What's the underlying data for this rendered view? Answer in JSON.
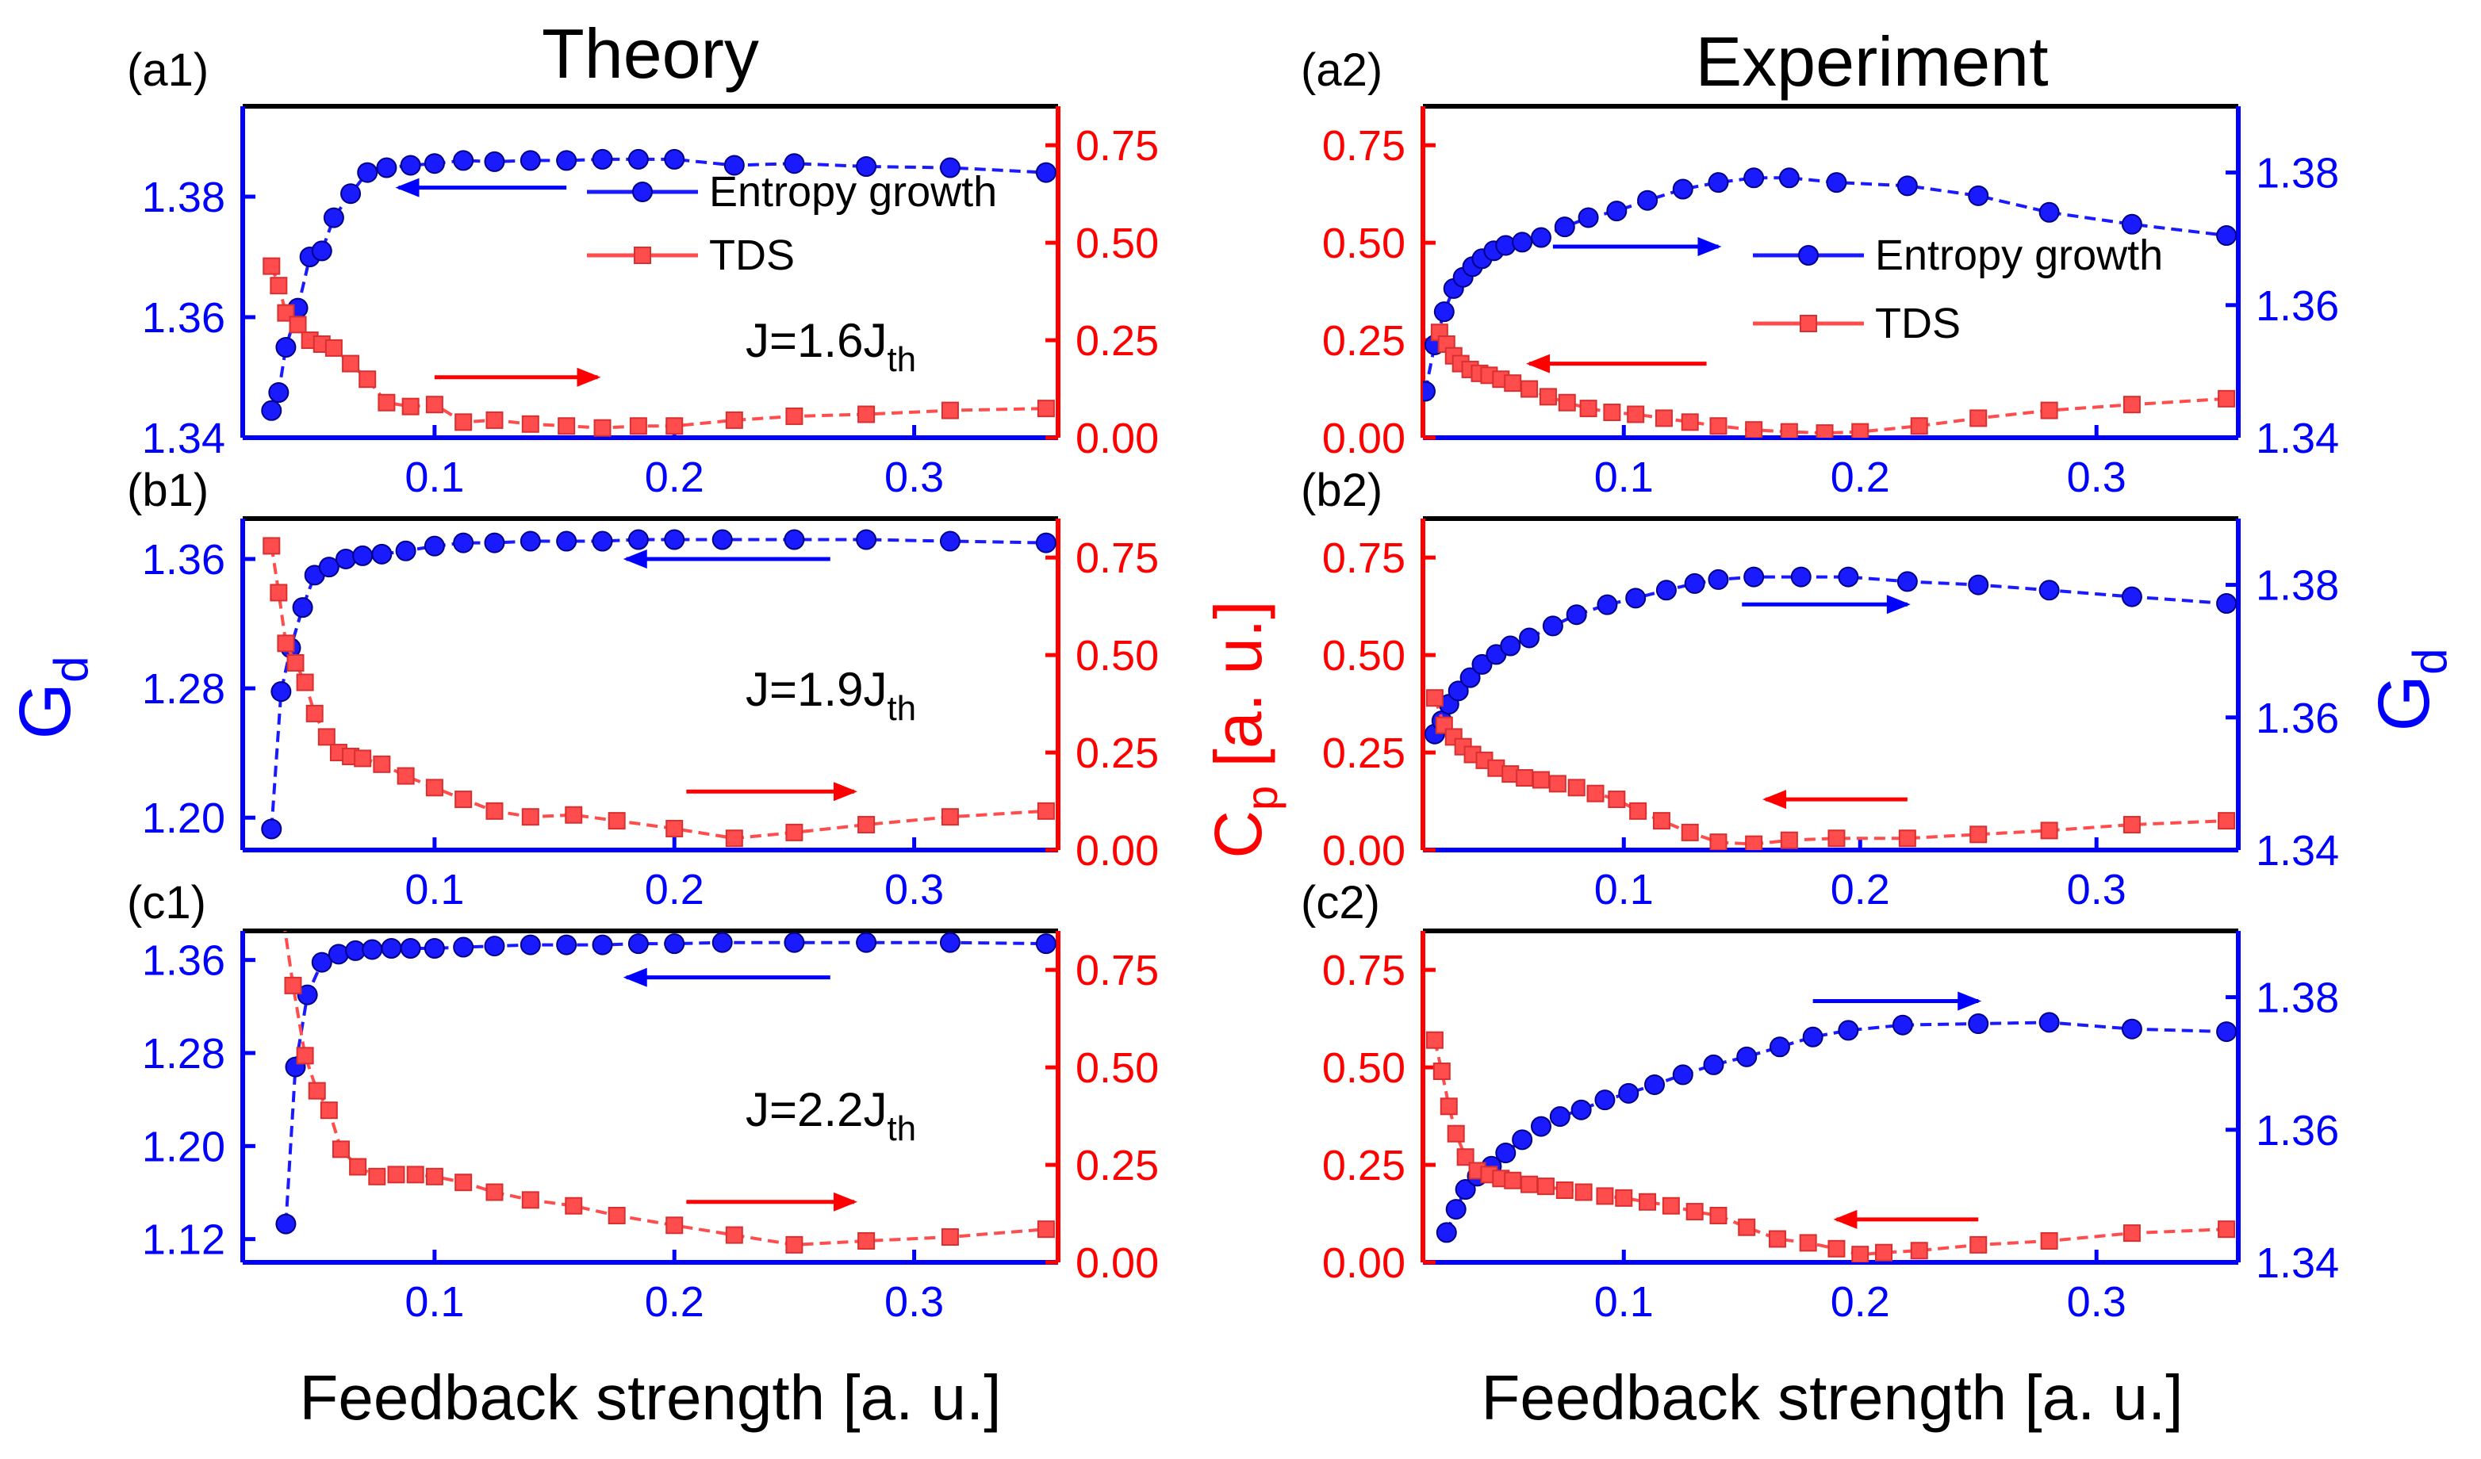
{
  "figure": {
    "column_titles": [
      "Theory",
      "Experiment"
    ],
    "left_ylabel": "G",
    "left_ylabel_sub": "d",
    "center_ylabel": "C",
    "center_ylabel_sub": "p",
    "center_ylabel_suffix": " [a. u.]",
    "right_ylabel": "G",
    "right_ylabel_sub": "d",
    "xlabel": "Feedback strength [a. u.]",
    "colors": {
      "entropy": "#1a1aff",
      "tds": "#ff4c4c",
      "blue_axis": "#0000ff",
      "red_axis": "#ff0000"
    }
  },
  "chart_data": [
    {
      "panel": "(a1)",
      "column": "Theory",
      "type": "line",
      "annotation": {
        "base": "J=1.6J",
        "sub": "th"
      },
      "legend": [
        "Entropy growth",
        "TDS"
      ],
      "xlim": [
        0.02,
        0.36
      ],
      "xticks": [
        0.1,
        0.2,
        0.3
      ],
      "gd_axis": {
        "side": "left",
        "ylim": [
          1.34,
          1.395
        ],
        "ticks": [
          1.34,
          1.36,
          1.38
        ]
      },
      "cp_axis": {
        "side": "right",
        "ylim": [
          0,
          0.85
        ],
        "ticks": [
          0.0,
          0.25,
          0.5,
          0.75
        ]
      },
      "series": [
        {
          "name": "Entropy growth",
          "axis": "gd",
          "x": [
            0.032,
            0.035,
            0.038,
            0.043,
            0.048,
            0.053,
            0.058,
            0.065,
            0.072,
            0.08,
            0.09,
            0.1,
            0.112,
            0.125,
            0.14,
            0.155,
            0.17,
            0.185,
            0.2,
            0.225,
            0.25,
            0.28,
            0.315,
            0.355
          ],
          "y": [
            1.3445,
            1.3475,
            1.355,
            1.3615,
            1.37,
            1.371,
            1.3765,
            1.3805,
            1.384,
            1.3848,
            1.3852,
            1.3855,
            1.386,
            1.3858,
            1.386,
            1.386,
            1.3862,
            1.3862,
            1.3862,
            1.3852,
            1.3855,
            1.385,
            1.3848,
            1.384
          ]
        },
        {
          "name": "TDS",
          "axis": "cp",
          "x": [
            0.032,
            0.035,
            0.038,
            0.043,
            0.048,
            0.053,
            0.058,
            0.065,
            0.072,
            0.08,
            0.09,
            0.1,
            0.112,
            0.125,
            0.14,
            0.155,
            0.17,
            0.185,
            0.2,
            0.225,
            0.25,
            0.28,
            0.315,
            0.355
          ],
          "y": [
            0.44,
            0.39,
            0.32,
            0.29,
            0.25,
            0.24,
            0.23,
            0.19,
            0.15,
            0.09,
            0.08,
            0.085,
            0.04,
            0.045,
            0.035,
            0.03,
            0.025,
            0.03,
            0.03,
            0.045,
            0.055,
            0.06,
            0.07,
            0.075
          ]
        }
      ],
      "arrows": [
        {
          "target": "Entropy growth",
          "direction": "left",
          "y_axis": "gd",
          "y": 1.3815,
          "x_from": 0.155,
          "x_to": 0.085
        },
        {
          "target": "TDS",
          "direction": "right",
          "y_axis": "cp",
          "y": 0.155,
          "x_from": 0.1,
          "x_to": 0.168
        }
      ]
    },
    {
      "panel": "(a2)",
      "column": "Experiment",
      "type": "line",
      "legend": [
        "Entropy growth",
        "TDS"
      ],
      "xlim": [
        0.015,
        0.36
      ],
      "xticks": [
        0.1,
        0.2,
        0.3
      ],
      "cp_axis": {
        "side": "left",
        "ylim": [
          0,
          0.85
        ],
        "ticks": [
          0.0,
          0.25,
          0.5,
          0.75
        ]
      },
      "gd_axis": {
        "side": "right",
        "ylim": [
          1.34,
          1.39
        ],
        "ticks": [
          1.34,
          1.36,
          1.38
        ]
      },
      "series": [
        {
          "name": "Entropy growth",
          "axis": "gd",
          "x": [
            0.016,
            0.02,
            0.024,
            0.028,
            0.032,
            0.036,
            0.04,
            0.045,
            0.05,
            0.057,
            0.065,
            0.075,
            0.085,
            0.097,
            0.11,
            0.125,
            0.14,
            0.155,
            0.17,
            0.19,
            0.22,
            0.25,
            0.28,
            0.315,
            0.355
          ],
          "y": [
            1.347,
            1.354,
            1.359,
            1.3625,
            1.3642,
            1.3658,
            1.367,
            1.3682,
            1.369,
            1.3695,
            1.3702,
            1.3718,
            1.3732,
            1.3742,
            1.3758,
            1.3775,
            1.3785,
            1.3792,
            1.3792,
            1.3785,
            1.378,
            1.3765,
            1.374,
            1.3722,
            1.3705
          ]
        },
        {
          "name": "TDS",
          "axis": "cp",
          "x": [
            0.022,
            0.025,
            0.028,
            0.031,
            0.035,
            0.039,
            0.043,
            0.048,
            0.053,
            0.06,
            0.068,
            0.076,
            0.085,
            0.095,
            0.105,
            0.117,
            0.128,
            0.14,
            0.155,
            0.17,
            0.185,
            0.2,
            0.225,
            0.25,
            0.28,
            0.315,
            0.355
          ],
          "y": [
            0.27,
            0.24,
            0.21,
            0.19,
            0.175,
            0.165,
            0.16,
            0.15,
            0.14,
            0.125,
            0.105,
            0.09,
            0.075,
            0.065,
            0.06,
            0.05,
            0.04,
            0.03,
            0.02,
            0.015,
            0.012,
            0.015,
            0.03,
            0.05,
            0.07,
            0.085,
            0.1
          ]
        }
      ],
      "arrows": [
        {
          "target": "Entropy growth",
          "direction": "right",
          "y_axis": "cp",
          "y": 0.49,
          "x_from": 0.07,
          "x_to": 0.14
        },
        {
          "target": "TDS",
          "direction": "left",
          "y_axis": "cp",
          "y": 0.19,
          "x_from": 0.135,
          "x_to": 0.06
        }
      ]
    },
    {
      "panel": "(b1)",
      "column": "Theory",
      "type": "line",
      "annotation": {
        "base": "J=1.9J",
        "sub": "th"
      },
      "xlim": [
        0.02,
        0.36
      ],
      "xticks": [
        0.1,
        0.2,
        0.3
      ],
      "gd_axis": {
        "side": "left",
        "ylim": [
          1.18,
          1.385
        ],
        "ticks": [
          1.2,
          1.28,
          1.36
        ]
      },
      "cp_axis": {
        "side": "right",
        "ylim": [
          0,
          0.85
        ],
        "ticks": [
          0.0,
          0.25,
          0.5,
          0.75
        ]
      },
      "series": [
        {
          "name": "Entropy growth",
          "axis": "gd",
          "x": [
            0.032,
            0.036,
            0.04,
            0.045,
            0.05,
            0.056,
            0.063,
            0.07,
            0.078,
            0.088,
            0.1,
            0.112,
            0.125,
            0.14,
            0.155,
            0.17,
            0.185,
            0.2,
            0.22,
            0.25,
            0.28,
            0.315,
            0.355
          ],
          "y": [
            1.193,
            1.278,
            1.305,
            1.33,
            1.35,
            1.355,
            1.36,
            1.362,
            1.363,
            1.365,
            1.368,
            1.37,
            1.37,
            1.371,
            1.371,
            1.371,
            1.372,
            1.372,
            1.372,
            1.372,
            1.372,
            1.371,
            1.37
          ]
        },
        {
          "name": "TDS",
          "axis": "cp",
          "x": [
            0.032,
            0.035,
            0.038,
            0.042,
            0.046,
            0.05,
            0.055,
            0.06,
            0.065,
            0.07,
            0.078,
            0.088,
            0.1,
            0.112,
            0.125,
            0.14,
            0.158,
            0.176,
            0.2,
            0.225,
            0.25,
            0.28,
            0.315,
            0.355
          ],
          "y": [
            0.78,
            0.66,
            0.53,
            0.48,
            0.43,
            0.35,
            0.29,
            0.25,
            0.24,
            0.235,
            0.22,
            0.19,
            0.16,
            0.13,
            0.1,
            0.085,
            0.09,
            0.075,
            0.055,
            0.03,
            0.045,
            0.065,
            0.085,
            0.1
          ]
        }
      ],
      "arrows": [
        {
          "target": "Entropy growth",
          "direction": "left",
          "y_axis": "gd",
          "y": 1.36,
          "x_from": 0.265,
          "x_to": 0.18
        },
        {
          "target": "TDS",
          "direction": "right",
          "y_axis": "cp",
          "y": 0.15,
          "x_from": 0.205,
          "x_to": 0.275
        }
      ]
    },
    {
      "panel": "(b2)",
      "column": "Experiment",
      "type": "line",
      "xlim": [
        0.015,
        0.36
      ],
      "xticks": [
        0.1,
        0.2,
        0.3
      ],
      "cp_axis": {
        "side": "left",
        "ylim": [
          0,
          0.85
        ],
        "ticks": [
          0.0,
          0.25,
          0.5,
          0.75
        ]
      },
      "gd_axis": {
        "side": "right",
        "ylim": [
          1.34,
          1.39
        ],
        "ticks": [
          1.34,
          1.36,
          1.38
        ]
      },
      "series": [
        {
          "name": "Entropy growth",
          "axis": "gd",
          "x": [
            0.02,
            0.023,
            0.026,
            0.03,
            0.035,
            0.04,
            0.046,
            0.052,
            0.06,
            0.07,
            0.08,
            0.093,
            0.105,
            0.118,
            0.13,
            0.14,
            0.155,
            0.175,
            0.195,
            0.22,
            0.25,
            0.28,
            0.315,
            0.355
          ],
          "y": [
            1.3575,
            1.3595,
            1.362,
            1.364,
            1.366,
            1.368,
            1.3695,
            1.3708,
            1.372,
            1.3738,
            1.3755,
            1.377,
            1.378,
            1.3792,
            1.3802,
            1.3808,
            1.3812,
            1.3812,
            1.3812,
            1.3805,
            1.38,
            1.3792,
            1.3782,
            1.3772
          ]
        },
        {
          "name": "TDS",
          "axis": "cp",
          "x": [
            0.02,
            0.024,
            0.028,
            0.032,
            0.036,
            0.041,
            0.046,
            0.052,
            0.058,
            0.065,
            0.072,
            0.08,
            0.088,
            0.097,
            0.106,
            0.116,
            0.128,
            0.14,
            0.155,
            0.17,
            0.19,
            0.22,
            0.25,
            0.28,
            0.315,
            0.355
          ],
          "y": [
            0.39,
            0.32,
            0.29,
            0.265,
            0.245,
            0.23,
            0.21,
            0.195,
            0.185,
            0.18,
            0.17,
            0.16,
            0.145,
            0.13,
            0.1,
            0.075,
            0.045,
            0.02,
            0.015,
            0.025,
            0.03,
            0.03,
            0.04,
            0.05,
            0.065,
            0.075
          ]
        }
      ],
      "arrows": [
        {
          "target": "Entropy growth",
          "direction": "right",
          "y_axis": "cp",
          "y": 0.63,
          "x_from": 0.15,
          "x_to": 0.22
        },
        {
          "target": "TDS",
          "direction": "left",
          "y_axis": "cp",
          "y": 0.13,
          "x_from": 0.22,
          "x_to": 0.16
        }
      ]
    },
    {
      "panel": "(c1)",
      "column": "Theory",
      "type": "line",
      "annotation": {
        "base": "J=2.2J",
        "sub": "th"
      },
      "xlim": [
        0.02,
        0.36
      ],
      "xticks": [
        0.1,
        0.2,
        0.3
      ],
      "gd_axis": {
        "side": "left",
        "ylim": [
          1.1,
          1.385
        ],
        "ticks": [
          1.12,
          1.2,
          1.28,
          1.36
        ]
      },
      "cp_axis": {
        "side": "right",
        "ylim": [
          0,
          0.85
        ],
        "ticks": [
          0.0,
          0.25,
          0.5,
          0.75
        ]
      },
      "series": [
        {
          "name": "Entropy growth",
          "axis": "gd",
          "x": [
            0.038,
            0.042,
            0.047,
            0.053,
            0.06,
            0.067,
            0.074,
            0.082,
            0.09,
            0.1,
            0.112,
            0.125,
            0.14,
            0.155,
            0.17,
            0.185,
            0.2,
            0.22,
            0.25,
            0.28,
            0.315,
            0.355
          ],
          "y": [
            1.133,
            1.268,
            1.33,
            1.358,
            1.365,
            1.368,
            1.369,
            1.37,
            1.37,
            1.37,
            1.371,
            1.372,
            1.373,
            1.373,
            1.373,
            1.374,
            1.374,
            1.375,
            1.375,
            1.375,
            1.375,
            1.374
          ]
        },
        {
          "name": "TDS",
          "axis": "cp",
          "x": [
            0.036,
            0.041,
            0.046,
            0.051,
            0.056,
            0.061,
            0.068,
            0.076,
            0.084,
            0.092,
            0.1,
            0.112,
            0.125,
            0.14,
            0.158,
            0.176,
            0.2,
            0.225,
            0.25,
            0.28,
            0.315,
            0.355
          ],
          "y": [
            0.92,
            0.71,
            0.53,
            0.44,
            0.39,
            0.29,
            0.245,
            0.22,
            0.225,
            0.225,
            0.22,
            0.205,
            0.18,
            0.16,
            0.145,
            0.12,
            0.095,
            0.07,
            0.045,
            0.055,
            0.065,
            0.085
          ]
        }
      ],
      "arrows": [
        {
          "target": "Entropy growth",
          "direction": "left",
          "y_axis": "gd",
          "y": 1.345,
          "x_from": 0.265,
          "x_to": 0.18
        },
        {
          "target": "TDS",
          "direction": "right",
          "y_axis": "cp",
          "y": 0.155,
          "x_from": 0.205,
          "x_to": 0.275
        }
      ]
    },
    {
      "panel": "(c2)",
      "column": "Experiment",
      "type": "line",
      "xlim": [
        0.015,
        0.36
      ],
      "xticks": [
        0.1,
        0.2,
        0.3
      ],
      "cp_axis": {
        "side": "left",
        "ylim": [
          0,
          0.85
        ],
        "ticks": [
          0.0,
          0.25,
          0.5,
          0.75
        ]
      },
      "gd_axis": {
        "side": "right",
        "ylim": [
          1.34,
          1.39
        ],
        "ticks": [
          1.34,
          1.36,
          1.38
        ]
      },
      "series": [
        {
          "name": "Entropy growth",
          "axis": "gd",
          "x": [
            0.025,
            0.029,
            0.033,
            0.038,
            0.044,
            0.05,
            0.057,
            0.065,
            0.073,
            0.082,
            0.092,
            0.102,
            0.113,
            0.125,
            0.138,
            0.152,
            0.166,
            0.18,
            0.195,
            0.218,
            0.25,
            0.28,
            0.315,
            0.355
          ],
          "y": [
            1.3445,
            1.348,
            1.351,
            1.353,
            1.3545,
            1.3565,
            1.3585,
            1.3605,
            1.362,
            1.363,
            1.3645,
            1.3655,
            1.3668,
            1.3683,
            1.3698,
            1.371,
            1.3725,
            1.374,
            1.375,
            1.3758,
            1.376,
            1.3762,
            1.3752,
            1.3748
          ]
        },
        {
          "name": "TDS",
          "axis": "cp",
          "x": [
            0.02,
            0.023,
            0.026,
            0.029,
            0.033,
            0.038,
            0.043,
            0.048,
            0.053,
            0.06,
            0.067,
            0.075,
            0.083,
            0.092,
            0.1,
            0.11,
            0.12,
            0.13,
            0.14,
            0.152,
            0.165,
            0.178,
            0.19,
            0.2,
            0.21,
            0.225,
            0.25,
            0.28,
            0.315,
            0.355
          ],
          "y": [
            0.57,
            0.49,
            0.4,
            0.33,
            0.27,
            0.235,
            0.225,
            0.215,
            0.21,
            0.2,
            0.195,
            0.185,
            0.18,
            0.17,
            0.165,
            0.155,
            0.145,
            0.13,
            0.12,
            0.09,
            0.06,
            0.05,
            0.035,
            0.02,
            0.025,
            0.03,
            0.045,
            0.055,
            0.075,
            0.085
          ]
        }
      ],
      "arrows": [
        {
          "target": "Entropy growth",
          "direction": "right",
          "y_axis": "cp",
          "y": 0.67,
          "x_from": 0.18,
          "x_to": 0.25
        },
        {
          "target": "TDS",
          "direction": "left",
          "y_axis": "cp",
          "y": 0.11,
          "x_from": 0.25,
          "x_to": 0.19
        }
      ]
    }
  ]
}
